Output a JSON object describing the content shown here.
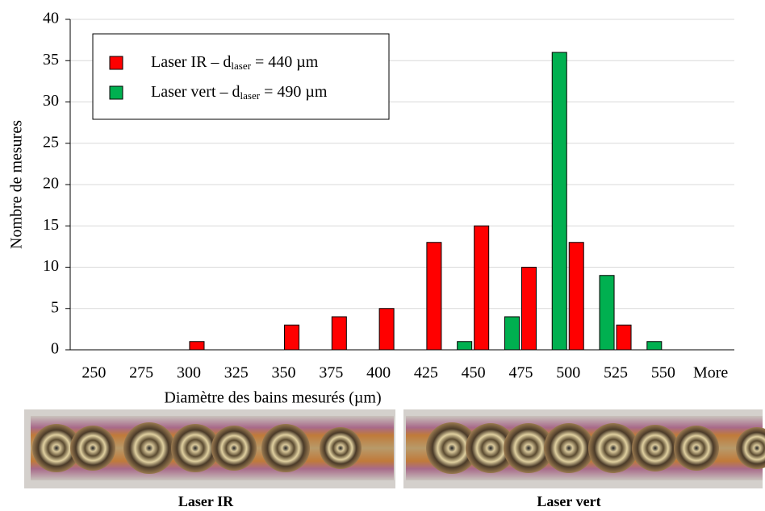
{
  "chart_data": {
    "type": "bar",
    "x_label": "Diamètre des bains mesurés (µm)",
    "y_label": "Nombre de mesures",
    "categories": [
      "250",
      "275",
      "300",
      "325",
      "350",
      "375",
      "400",
      "425",
      "450",
      "475",
      "500",
      "525",
      "550",
      "More"
    ],
    "series": [
      {
        "name": [
          "Laser IR – d",
          "laser",
          " = 440 µm"
        ],
        "color": "#ff0000",
        "values": [
          0,
          0,
          1,
          0,
          3,
          4,
          5,
          13,
          15,
          10,
          13,
          3,
          0,
          0
        ]
      },
      {
        "name": [
          "Laser vert – d",
          "laser",
          " = 490 µm"
        ],
        "color": "#00b050",
        "values": [
          0,
          0,
          0,
          0,
          0,
          0,
          0,
          0,
          1,
          4,
          36,
          9,
          1,
          0
        ]
      }
    ],
    "ylim": [
      0,
      40
    ],
    "yticks": [
      0,
      5,
      10,
      15,
      20,
      25,
      30,
      35,
      40
    ],
    "grid": true,
    "legend": "top-left"
  },
  "images": [
    {
      "caption": "Laser IR"
    },
    {
      "caption": "Laser vert"
    }
  ]
}
